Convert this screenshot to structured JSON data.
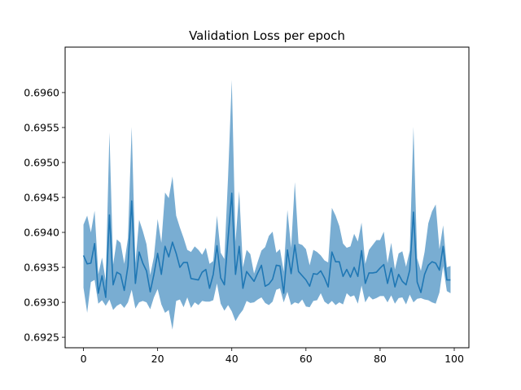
{
  "chart_data": {
    "type": "line",
    "title": "Validation Loss per epoch",
    "xlabel": "",
    "ylabel": "",
    "xlim": [
      -4.95,
      103.95
    ],
    "ylim": [
      0.69235,
      0.69665
    ],
    "xticks": [
      0,
      20,
      40,
      60,
      80,
      100
    ],
    "yticks": [
      0.6925,
      0.693,
      0.6935,
      0.694,
      0.6945,
      0.695,
      0.6955,
      0.696
    ],
    "ytick_labels": [
      "0.6925",
      "0.6930",
      "0.6935",
      "0.6940",
      "0.6945",
      "0.6950",
      "0.6955",
      "0.6960"
    ],
    "grid": false,
    "line_color": "#1f77b4",
    "band_color": "#1f77b4",
    "band_alpha": 0.6,
    "series": [
      {
        "x": [
          0,
          1,
          2,
          3,
          4,
          5,
          6,
          7,
          8,
          9,
          10,
          11,
          12,
          13,
          14,
          15,
          16,
          17,
          18,
          19,
          20,
          21,
          22,
          23,
          24,
          25,
          26,
          27,
          28,
          29,
          30,
          31,
          32,
          33,
          34,
          35,
          36,
          37,
          38,
          39,
          40,
          41,
          42,
          43,
          44,
          45,
          46,
          47,
          48,
          49,
          50,
          51,
          52,
          53,
          54,
          55,
          56,
          57,
          58,
          59,
          60,
          61,
          62,
          63,
          64,
          65,
          66,
          67,
          68,
          69,
          70,
          71,
          72,
          73,
          74,
          75,
          76,
          77,
          78,
          79,
          80,
          81,
          82,
          83,
          84,
          85,
          86,
          87,
          88,
          89,
          90,
          91,
          92,
          93,
          94,
          95,
          96,
          97,
          98,
          99
        ],
        "mean": [
          0.69367,
          0.69355,
          0.69356,
          0.69384,
          0.69313,
          0.69338,
          0.69307,
          0.69425,
          0.69325,
          0.69343,
          0.6934,
          0.69317,
          0.69352,
          0.69445,
          0.69327,
          0.69372,
          0.69356,
          0.69345,
          0.69315,
          0.6934,
          0.6937,
          0.6934,
          0.6938,
          0.69365,
          0.69386,
          0.6937,
          0.6935,
          0.69357,
          0.69357,
          0.69334,
          0.69333,
          0.69332,
          0.69343,
          0.69347,
          0.6932,
          0.6934,
          0.69381,
          0.69335,
          0.69325,
          0.69392,
          0.69456,
          0.6934,
          0.6938,
          0.6932,
          0.69344,
          0.69337,
          0.6933,
          0.69342,
          0.69353,
          0.69323,
          0.69326,
          0.69333,
          0.69353,
          0.69352,
          0.69313,
          0.69375,
          0.69341,
          0.69382,
          0.69344,
          0.69338,
          0.69332,
          0.69323,
          0.69341,
          0.6934,
          0.69345,
          0.69335,
          0.69322,
          0.69372,
          0.69358,
          0.69358,
          0.69337,
          0.69347,
          0.69336,
          0.6935,
          0.69337,
          0.69374,
          0.69327,
          0.69342,
          0.69342,
          0.69343,
          0.69349,
          0.69354,
          0.69327,
          0.69349,
          0.69322,
          0.6934,
          0.6933,
          0.69325,
          0.69346,
          0.69429,
          0.69329,
          0.69314,
          0.6934,
          0.69353,
          0.69358,
          0.69356,
          0.69346,
          0.6938,
          0.69332,
          0.69332
        ],
        "upper": [
          0.69411,
          0.69424,
          0.694,
          0.69431,
          0.6934,
          0.69364,
          0.69331,
          0.69543,
          0.69354,
          0.6939,
          0.69385,
          0.69355,
          0.69392,
          0.69551,
          0.69356,
          0.69418,
          0.69402,
          0.69383,
          0.69339,
          0.69365,
          0.69419,
          0.69385,
          0.69457,
          0.69449,
          0.6948,
          0.69424,
          0.69407,
          0.69392,
          0.69375,
          0.69372,
          0.6938,
          0.69375,
          0.69368,
          0.69378,
          0.69355,
          0.69359,
          0.69424,
          0.69371,
          0.69362,
          0.6948,
          0.69618,
          0.69387,
          0.69459,
          0.6935,
          0.69375,
          0.69369,
          0.69341,
          0.69358,
          0.69374,
          0.69379,
          0.69395,
          0.69401,
          0.69371,
          0.69376,
          0.69344,
          0.69432,
          0.69378,
          0.69472,
          0.69384,
          0.69382,
          0.69376,
          0.69353,
          0.69375,
          0.69372,
          0.69367,
          0.6936,
          0.69357,
          0.69435,
          0.69424,
          0.69409,
          0.69384,
          0.69378,
          0.6938,
          0.69398,
          0.69387,
          0.69414,
          0.69355,
          0.69375,
          0.69382,
          0.69389,
          0.69389,
          0.69401,
          0.69356,
          0.69385,
          0.69347,
          0.6937,
          0.69373,
          0.69351,
          0.69374,
          0.69551,
          0.69363,
          0.69345,
          0.69372,
          0.69413,
          0.6943,
          0.6944,
          0.69376,
          0.6941,
          0.6935,
          0.69352
        ],
        "lower": [
          0.69321,
          0.69285,
          0.69329,
          0.69332,
          0.69298,
          0.69303,
          0.69295,
          0.69304,
          0.69289,
          0.69295,
          0.69298,
          0.69292,
          0.693,
          0.69318,
          0.69291,
          0.693,
          0.69302,
          0.693,
          0.6929,
          0.69307,
          0.69319,
          0.69297,
          0.69285,
          0.69289,
          0.69261,
          0.69302,
          0.69304,
          0.69293,
          0.69307,
          0.69292,
          0.693,
          0.69296,
          0.69302,
          0.69301,
          0.69301,
          0.69303,
          0.69327,
          0.69298,
          0.69288,
          0.69296,
          0.69287,
          0.69273,
          0.69282,
          0.69289,
          0.69302,
          0.69299,
          0.693,
          0.69304,
          0.69307,
          0.69299,
          0.69296,
          0.69301,
          0.69318,
          0.6932,
          0.693,
          0.69315,
          0.69296,
          0.693,
          0.69298,
          0.69304,
          0.69294,
          0.69293,
          0.69302,
          0.69303,
          0.69313,
          0.69301,
          0.69297,
          0.69302,
          0.69296,
          0.693,
          0.69297,
          0.69313,
          0.69308,
          0.6931,
          0.69298,
          0.69324,
          0.693,
          0.69309,
          0.69304,
          0.69306,
          0.69309,
          0.69309,
          0.693,
          0.6931,
          0.69298,
          0.69306,
          0.69307,
          0.69297,
          0.69311,
          0.693,
          0.69305,
          0.69306,
          0.69304,
          0.69303,
          0.693,
          0.69298,
          0.69314,
          0.69352,
          0.69316,
          0.69313
        ]
      }
    ]
  }
}
